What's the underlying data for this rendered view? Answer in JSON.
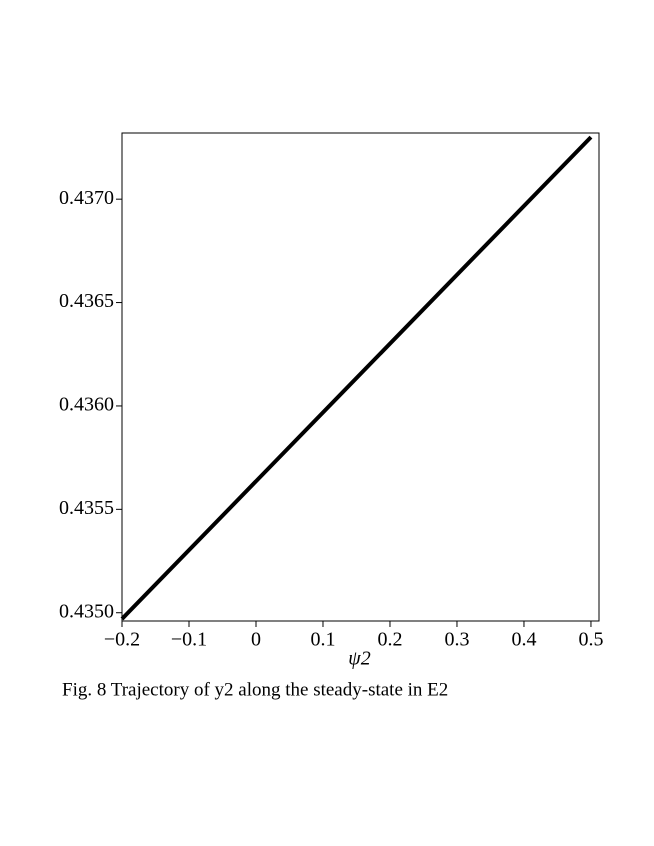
{
  "chart_data": {
    "type": "line",
    "x_label": "ψ2",
    "caption": "Fig. 8  Trajectory of y2 along the steady-state in E2",
    "x": [
      -0.2,
      0.5
    ],
    "series": [
      {
        "color": "#000000",
        "values": [
          0.43497,
          0.4373
        ]
      }
    ],
    "xlim": [
      -0.2,
      0.512
    ],
    "ylim": [
      0.43496,
      0.43732
    ],
    "xticks": [
      {
        "value": -0.2,
        "label": "−0.2"
      },
      {
        "value": -0.1,
        "label": "−0.1"
      },
      0,
      0.1,
      0.2,
      0.3,
      0.4,
      0.5
    ],
    "yticks": [
      {
        "value": 0.435,
        "label": "0.4350"
      },
      0.4355,
      {
        "value": 0.436,
        "label": "0.4360"
      },
      0.4365,
      {
        "value": 0.437,
        "label": "0.4370"
      }
    ]
  }
}
